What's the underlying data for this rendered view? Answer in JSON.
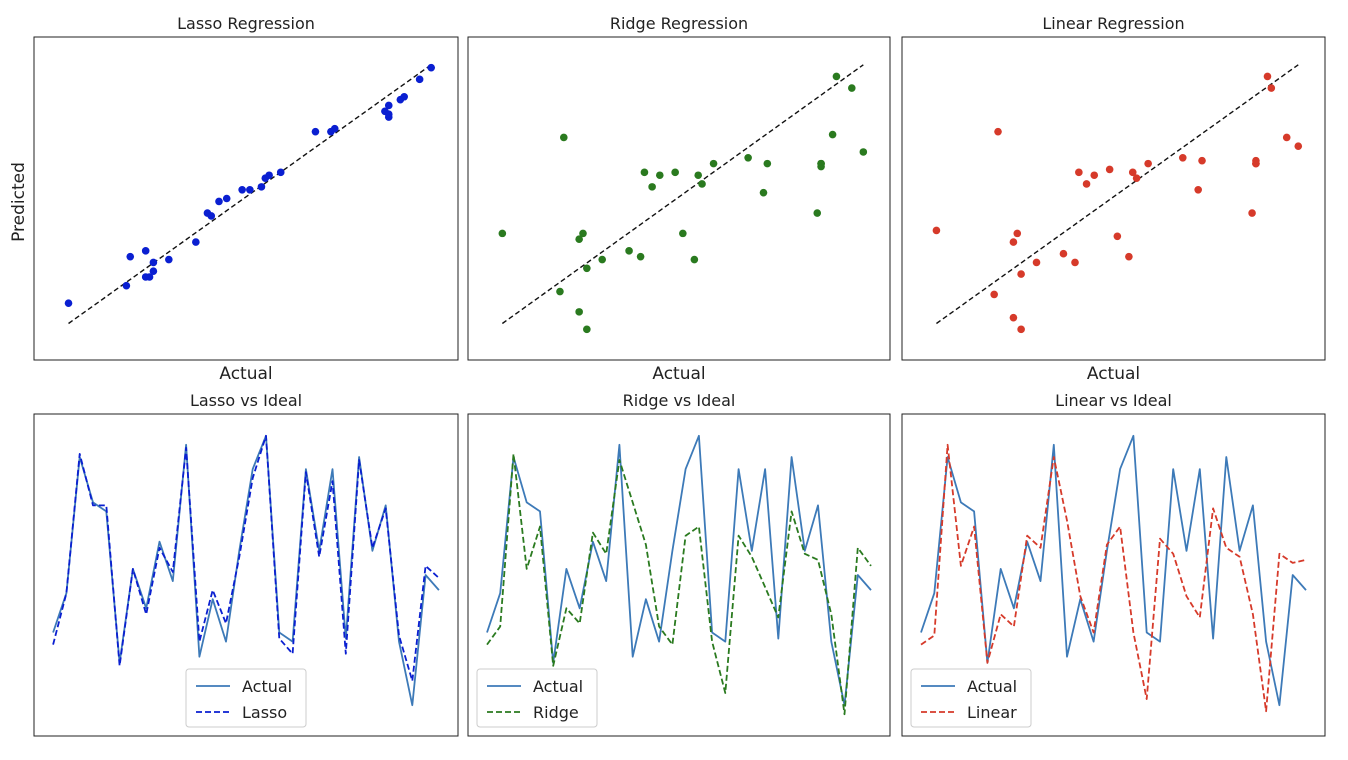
{
  "figure": {
    "ylabel_shared": "Predicted"
  },
  "chart_data": [
    {
      "type": "scatter",
      "title": "Lasso Regression",
      "xlabel": "Actual",
      "ylabel": "Predicted",
      "color": "#0a1fd1",
      "ideal_line": true,
      "grid": false,
      "xlim": [
        0,
        1
      ],
      "ylim": [
        0,
        1
      ],
      "points": [
        [
          0.04,
          0.14
        ],
        [
          0.19,
          0.2
        ],
        [
          0.2,
          0.3
        ],
        [
          0.24,
          0.23
        ],
        [
          0.24,
          0.32
        ],
        [
          0.25,
          0.23
        ],
        [
          0.26,
          0.25
        ],
        [
          0.26,
          0.28
        ],
        [
          0.3,
          0.29
        ],
        [
          0.37,
          0.35
        ],
        [
          0.4,
          0.45
        ],
        [
          0.41,
          0.44
        ],
        [
          0.43,
          0.49
        ],
        [
          0.45,
          0.5
        ],
        [
          0.49,
          0.53
        ],
        [
          0.51,
          0.53
        ],
        [
          0.54,
          0.54
        ],
        [
          0.55,
          0.57
        ],
        [
          0.56,
          0.58
        ],
        [
          0.59,
          0.59
        ],
        [
          0.68,
          0.73
        ],
        [
          0.72,
          0.73
        ],
        [
          0.73,
          0.74
        ],
        [
          0.86,
          0.8
        ],
        [
          0.87,
          0.78
        ],
        [
          0.87,
          0.79
        ],
        [
          0.87,
          0.82
        ],
        [
          0.9,
          0.84
        ],
        [
          0.91,
          0.85
        ],
        [
          0.95,
          0.91
        ],
        [
          0.98,
          0.95
        ]
      ]
    },
    {
      "type": "scatter",
      "title": "Ridge Regression",
      "xlabel": "Actual",
      "ylabel": "",
      "color": "#2a7a1f",
      "ideal_line": true,
      "grid": false,
      "xlim": [
        0,
        1
      ],
      "ylim": [
        0,
        1
      ],
      "points": [
        [
          0.04,
          0.38
        ],
        [
          0.19,
          0.18
        ],
        [
          0.2,
          0.71
        ],
        [
          0.24,
          0.11
        ],
        [
          0.24,
          0.36
        ],
        [
          0.25,
          0.38
        ],
        [
          0.26,
          0.05
        ],
        [
          0.26,
          0.26
        ],
        [
          0.3,
          0.29
        ],
        [
          0.37,
          0.32
        ],
        [
          0.4,
          0.3
        ],
        [
          0.41,
          0.59
        ],
        [
          0.43,
          0.54
        ],
        [
          0.45,
          0.58
        ],
        [
          0.49,
          0.59
        ],
        [
          0.51,
          0.38
        ],
        [
          0.54,
          0.29
        ],
        [
          0.55,
          0.58
        ],
        [
          0.56,
          0.55
        ],
        [
          0.59,
          0.62
        ],
        [
          0.68,
          0.64
        ],
        [
          0.72,
          0.52
        ],
        [
          0.73,
          0.62
        ],
        [
          0.86,
          0.45
        ],
        [
          0.87,
          0.61
        ],
        [
          0.87,
          0.62
        ],
        [
          0.87,
          0.62
        ],
        [
          0.9,
          0.72
        ],
        [
          0.91,
          0.92
        ],
        [
          0.95,
          0.88
        ],
        [
          0.98,
          0.66
        ]
      ]
    },
    {
      "type": "scatter",
      "title": "Linear Regression",
      "xlabel": "Actual",
      "ylabel": "",
      "color": "#d63a2a",
      "ideal_line": true,
      "grid": false,
      "xlim": [
        0,
        1
      ],
      "ylim": [
        0,
        1
      ],
      "points": [
        [
          0.04,
          0.39
        ],
        [
          0.19,
          0.17
        ],
        [
          0.2,
          0.73
        ],
        [
          0.24,
          0.09
        ],
        [
          0.24,
          0.35
        ],
        [
          0.25,
          0.38
        ],
        [
          0.26,
          0.05
        ],
        [
          0.26,
          0.24
        ],
        [
          0.3,
          0.28
        ],
        [
          0.37,
          0.31
        ],
        [
          0.4,
          0.28
        ],
        [
          0.41,
          0.59
        ],
        [
          0.43,
          0.55
        ],
        [
          0.45,
          0.58
        ],
        [
          0.49,
          0.6
        ],
        [
          0.51,
          0.37
        ],
        [
          0.54,
          0.3
        ],
        [
          0.55,
          0.59
        ],
        [
          0.56,
          0.57
        ],
        [
          0.59,
          0.62
        ],
        [
          0.68,
          0.64
        ],
        [
          0.72,
          0.53
        ],
        [
          0.73,
          0.63
        ],
        [
          0.86,
          0.45
        ],
        [
          0.87,
          0.62
        ],
        [
          0.87,
          0.62
        ],
        [
          0.87,
          0.63
        ],
        [
          0.9,
          0.92
        ],
        [
          0.91,
          0.88
        ],
        [
          0.95,
          0.71
        ],
        [
          0.98,
          0.68
        ]
      ]
    },
    {
      "type": "line",
      "title": "Lasso vs Ideal",
      "grid": false,
      "legend_position": "bottom-center",
      "ylim": [
        0,
        1
      ],
      "series": [
        {
          "name": "Actual",
          "color": "#3d7ab8",
          "dash": "solid",
          "values": [
            0.31,
            0.44,
            0.89,
            0.74,
            0.71,
            0.21,
            0.52,
            0.39,
            0.61,
            0.48,
            0.93,
            0.23,
            0.42,
            0.28,
            0.58,
            0.85,
            0.96,
            0.31,
            0.28,
            0.85,
            0.58,
            0.85,
            0.29,
            0.89,
            0.58,
            0.73,
            0.28,
            0.07,
            0.5,
            0.45
          ]
        },
        {
          "name": "Lasso",
          "color": "#0a1fd1",
          "dash": "dashed",
          "values": [
            0.27,
            0.44,
            0.9,
            0.73,
            0.73,
            0.2,
            0.52,
            0.37,
            0.59,
            0.51,
            0.92,
            0.28,
            0.45,
            0.34,
            0.56,
            0.82,
            0.96,
            0.29,
            0.24,
            0.84,
            0.56,
            0.81,
            0.24,
            0.88,
            0.59,
            0.72,
            0.3,
            0.15,
            0.53,
            0.49
          ]
        }
      ]
    },
    {
      "type": "line",
      "title": "Ridge vs Ideal",
      "grid": false,
      "legend_position": "bottom-left",
      "ylim": [
        0,
        1
      ],
      "series": [
        {
          "name": "Actual",
          "color": "#3d7ab8",
          "dash": "solid",
          "values": [
            0.31,
            0.44,
            0.89,
            0.74,
            0.71,
            0.21,
            0.52,
            0.39,
            0.61,
            0.48,
            0.93,
            0.23,
            0.42,
            0.28,
            0.58,
            0.85,
            0.96,
            0.31,
            0.28,
            0.85,
            0.58,
            0.85,
            0.29,
            0.89,
            0.58,
            0.73,
            0.28,
            0.07,
            0.5,
            0.45
          ]
        },
        {
          "name": "Ridge",
          "color": "#2a7a1f",
          "dash": "dashed",
          "values": [
            0.27,
            0.33,
            0.9,
            0.52,
            0.66,
            0.2,
            0.39,
            0.34,
            0.64,
            0.57,
            0.88,
            0.74,
            0.6,
            0.33,
            0.27,
            0.63,
            0.66,
            0.28,
            0.11,
            0.63,
            0.56,
            0.46,
            0.36,
            0.71,
            0.57,
            0.55,
            0.37,
            0.04,
            0.59,
            0.53
          ]
        }
      ]
    },
    {
      "type": "line",
      "title": "Linear vs Ideal",
      "grid": false,
      "legend_position": "bottom-left",
      "ylim": [
        0,
        1
      ],
      "series": [
        {
          "name": "Actual",
          "color": "#3d7ab8",
          "dash": "solid",
          "values": [
            0.31,
            0.44,
            0.89,
            0.74,
            0.71,
            0.21,
            0.52,
            0.39,
            0.61,
            0.48,
            0.93,
            0.23,
            0.42,
            0.28,
            0.58,
            0.85,
            0.96,
            0.31,
            0.28,
            0.85,
            0.58,
            0.85,
            0.29,
            0.89,
            0.58,
            0.73,
            0.28,
            0.07,
            0.5,
            0.45
          ]
        },
        {
          "name": "Linear",
          "color": "#d63a2a",
          "dash": "dashed",
          "values": [
            0.27,
            0.3,
            0.93,
            0.53,
            0.66,
            0.21,
            0.37,
            0.33,
            0.63,
            0.59,
            0.89,
            0.68,
            0.43,
            0.31,
            0.6,
            0.66,
            0.31,
            0.09,
            0.62,
            0.57,
            0.43,
            0.36,
            0.72,
            0.59,
            0.56,
            0.37,
            0.05,
            0.57,
            0.54,
            0.55
          ]
        }
      ]
    }
  ]
}
